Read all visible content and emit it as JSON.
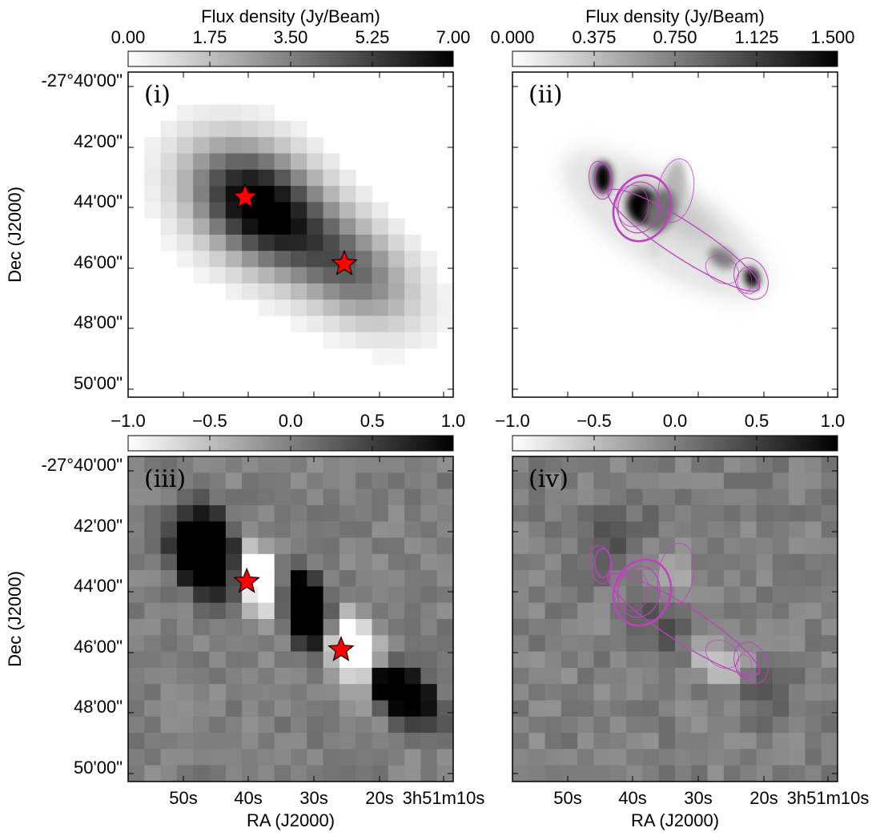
{
  "chart_data": [
    {
      "type": "heatmap",
      "panel_label": "(i)",
      "colorbar": {
        "label": "Flux density (Jy/Beam)",
        "range": [
          0.0,
          7.0
        ],
        "ticks": [
          "0.00",
          "1.75",
          "3.50",
          "5.25",
          "7.00"
        ]
      },
      "ylabel": "Dec (J2000)",
      "yticks": [
        "-27°40'00\"",
        "42'00\"",
        "44'00\"",
        "46'00\"",
        "48'00\"",
        "50'00\""
      ],
      "markers": [
        {
          "kind": "star",
          "color": "#ff0000",
          "x": 0.36,
          "y": 0.385
        },
        {
          "kind": "star",
          "color": "#ff0000",
          "x": 0.665,
          "y": 0.59
        }
      ]
    },
    {
      "type": "heatmap",
      "panel_label": "(ii)",
      "colorbar": {
        "label": "Flux density (Jy/Beam)",
        "range": [
          0.0,
          1.5
        ],
        "ticks": [
          "0.000",
          "0.375",
          "0.750",
          "1.125",
          "1.500"
        ]
      },
      "ellipse_color": "#c040c0"
    },
    {
      "type": "heatmap",
      "panel_label": "(iii)",
      "colorbar": {
        "label": "",
        "range": [
          -1.0,
          1.0
        ],
        "ticks": [
          "−1.0",
          "−0.5",
          "0.0",
          "0.5",
          "1.0"
        ]
      },
      "xlabel": "RA (J2000)",
      "xticks": [
        "50s",
        "40s",
        "30s",
        "20s",
        "3h51m10s"
      ],
      "ylabel": "Dec (J2000)",
      "yticks": [
        "-27°40'00\"",
        "42'00\"",
        "44'00\"",
        "46'00\"",
        "48'00\"",
        "50'00\""
      ],
      "markers": [
        {
          "kind": "star",
          "color": "#ff0000",
          "x": 0.365,
          "y": 0.385
        },
        {
          "kind": "star",
          "color": "#ff0000",
          "x": 0.655,
          "y": 0.595
        }
      ]
    },
    {
      "type": "heatmap",
      "panel_label": "(iv)",
      "colorbar": {
        "label": "",
        "range": [
          -1.0,
          1.0
        ],
        "ticks": [
          "−1.0",
          "−0.5",
          "0.0",
          "0.5",
          "1.0"
        ]
      },
      "xlabel": "RA (J2000)",
      "xticks": [
        "50s",
        "40s",
        "30s",
        "20s",
        "3h51m10s"
      ],
      "ellipse_color": "#c040c0"
    }
  ]
}
